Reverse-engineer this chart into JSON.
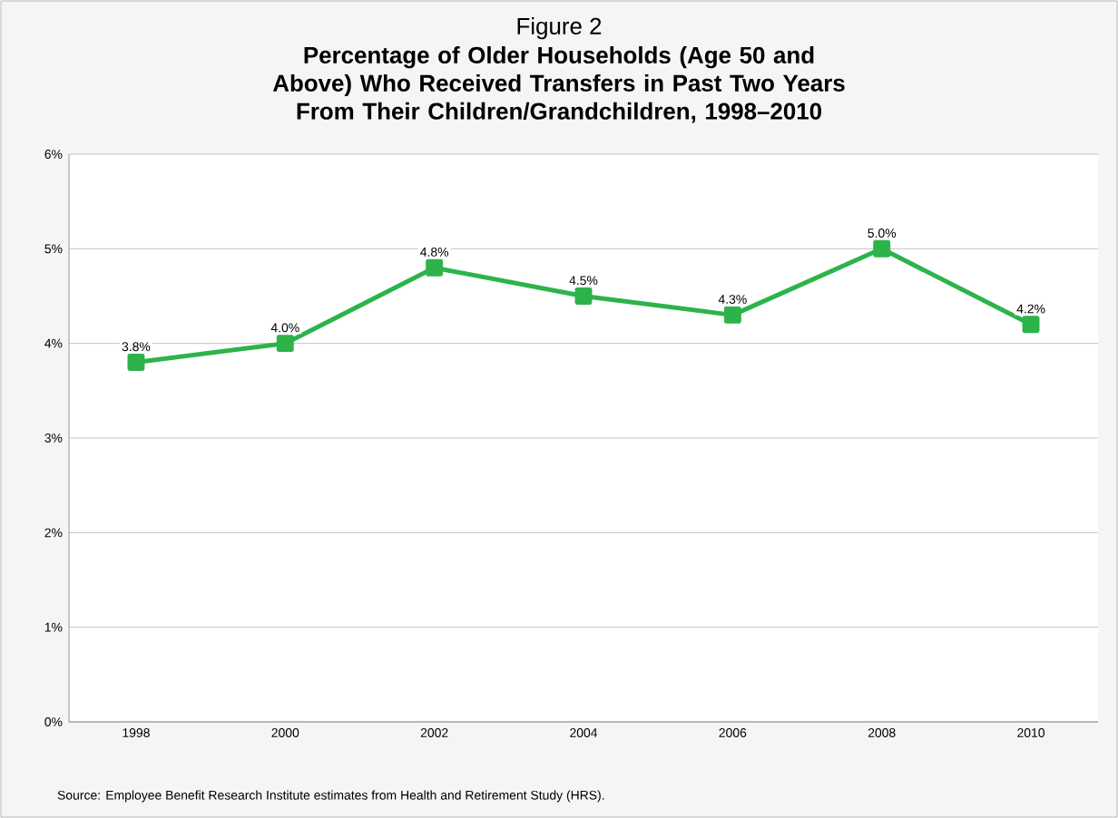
{
  "chart_data": {
    "type": "line",
    "title": "Figure 2",
    "subtitle": "Percentage of Older Households (Age 50 and Above) Who Received Transfers in Past Two Years From Their Children/Grandchildren, 1998–2010",
    "categories": [
      "1998",
      "2000",
      "2002",
      "2004",
      "2006",
      "2008",
      "2010"
    ],
    "series": [
      {
        "color": "#2db34a",
        "values": [
          3.8,
          4.0,
          4.8,
          4.5,
          4.3,
          5.0,
          4.2
        ],
        "value_labels": [
          "3.8%",
          "4.0%",
          "4.8%",
          "4.5%",
          "4.3%",
          "5.0%",
          "4.2%"
        ]
      }
    ],
    "ylim": [
      0,
      6
    ],
    "yticks": [
      {
        "value": 0,
        "label": "0%"
      },
      {
        "value": 1,
        "label": "1%"
      },
      {
        "value": 2,
        "label": "2%"
      },
      {
        "value": 3,
        "label": "3%"
      },
      {
        "value": 4,
        "label": "4%"
      },
      {
        "value": 5,
        "label": "5%"
      },
      {
        "value": 6,
        "label": "6%"
      }
    ],
    "grid": "y",
    "marker": "square",
    "line_style": "solid",
    "annotations": [
      "Source: Employee Benefit Research Institute estimates from Health and Retirement Study (HRS)."
    ]
  }
}
